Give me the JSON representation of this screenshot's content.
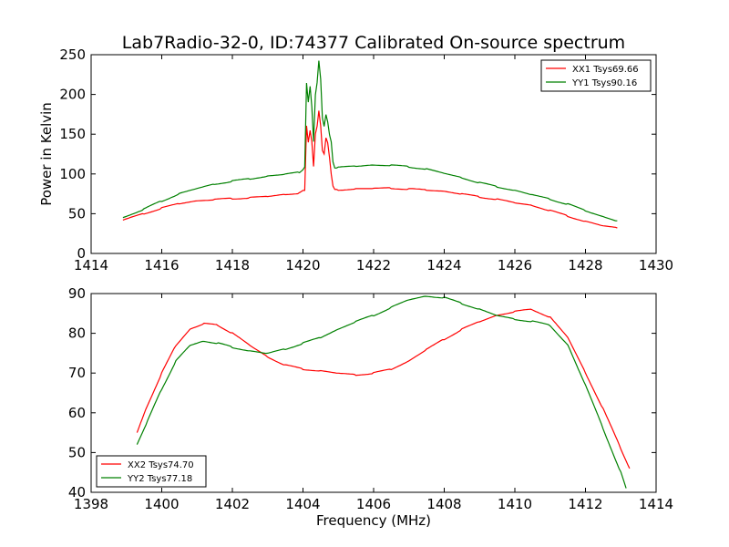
{
  "figure": {
    "title": "Lab7Radio-32-0, ID:74377 Calibrated On-source spectrum"
  },
  "chart_data": [
    {
      "type": "line",
      "title": "Lab7Radio-32-0, ID:74377 Calibrated On-source spectrum",
      "xlabel": "",
      "ylabel": "Power in Kelvin",
      "xlim": [
        1414,
        1430
      ],
      "ylim": [
        0,
        250
      ],
      "xticks": [
        1414,
        1416,
        1418,
        1420,
        1422,
        1424,
        1426,
        1428,
        1430
      ],
      "yticks": [
        0,
        50,
        100,
        150,
        200,
        250
      ],
      "legend_position": "top-right",
      "grid": false,
      "series": [
        {
          "name": "XX1 Tsys69.66",
          "color": "#ff0000",
          "x": [
            1414.9,
            1415.5,
            1416.0,
            1416.5,
            1417.0,
            1417.5,
            1418.0,
            1418.5,
            1419.0,
            1419.5,
            1419.9,
            1420.05,
            1420.1,
            1420.15,
            1420.2,
            1420.25,
            1420.3,
            1420.35,
            1420.4,
            1420.45,
            1420.5,
            1420.55,
            1420.6,
            1420.65,
            1420.7,
            1420.75,
            1420.8,
            1420.85,
            1420.9,
            1421.0,
            1421.5,
            1422.0,
            1422.5,
            1423.0,
            1423.5,
            1424.0,
            1424.5,
            1425.0,
            1425.5,
            1426.0,
            1426.5,
            1427.0,
            1427.5,
            1428.0,
            1428.5,
            1428.9
          ],
          "y": [
            42,
            50,
            57,
            63,
            66,
            68,
            69,
            70,
            72,
            74,
            76,
            80,
            160,
            140,
            155,
            140,
            110,
            150,
            160,
            180,
            160,
            130,
            125,
            145,
            140,
            120,
            100,
            85,
            80,
            80,
            81,
            82,
            82,
            81,
            80,
            78,
            75,
            71,
            68,
            64,
            60,
            54,
            47,
            40,
            35,
            32
          ]
        },
        {
          "name": "YY1 Tsys90.16",
          "color": "#008000",
          "x": [
            1414.9,
            1415.5,
            1416.0,
            1416.5,
            1417.0,
            1417.5,
            1418.0,
            1418.5,
            1419.0,
            1419.5,
            1419.9,
            1420.05,
            1420.1,
            1420.15,
            1420.2,
            1420.25,
            1420.3,
            1420.35,
            1420.4,
            1420.45,
            1420.5,
            1420.55,
            1420.6,
            1420.65,
            1420.7,
            1420.75,
            1420.8,
            1420.85,
            1420.9,
            1421.0,
            1421.5,
            1422.0,
            1422.5,
            1423.0,
            1423.5,
            1424.0,
            1424.5,
            1425.0,
            1425.5,
            1426.0,
            1426.5,
            1427.0,
            1427.5,
            1428.0,
            1428.5,
            1428.9
          ],
          "y": [
            45,
            56,
            66,
            75,
            82,
            87,
            91,
            94,
            97,
            100,
            102,
            108,
            215,
            190,
            210,
            185,
            140,
            200,
            215,
            242,
            220,
            170,
            160,
            175,
            165,
            150,
            140,
            115,
            108,
            108,
            110,
            111,
            111,
            109,
            106,
            101,
            95,
            89,
            84,
            79,
            74,
            68,
            62,
            54,
            46,
            41
          ]
        }
      ]
    },
    {
      "type": "line",
      "title": "",
      "xlabel": "Frequency (MHz)",
      "ylabel": "",
      "xlim": [
        1398,
        1414
      ],
      "ylim": [
        40,
        90
      ],
      "xticks": [
        1398,
        1400,
        1402,
        1404,
        1406,
        1408,
        1410,
        1412,
        1414
      ],
      "yticks": [
        40,
        50,
        60,
        70,
        80,
        90
      ],
      "legend_position": "bottom-left",
      "grid": false,
      "series": [
        {
          "name": "XX2 Tsys74.70",
          "color": "#ff0000",
          "x": [
            1399.3,
            1399.6,
            1400.0,
            1400.4,
            1400.8,
            1401.2,
            1401.6,
            1402.0,
            1402.5,
            1403.0,
            1403.5,
            1404.0,
            1404.5,
            1405.0,
            1405.5,
            1406.0,
            1406.5,
            1407.0,
            1407.5,
            1408.0,
            1408.5,
            1409.0,
            1409.5,
            1410.0,
            1410.5,
            1411.0,
            1411.5,
            1412.0,
            1412.5,
            1413.0,
            1413.25
          ],
          "y": [
            55,
            62,
            70,
            77,
            81,
            82.5,
            82,
            80,
            77,
            74,
            72,
            71,
            70.5,
            70,
            69.5,
            70,
            71,
            73,
            76,
            78.5,
            81,
            83,
            84.5,
            85.5,
            86,
            84,
            79,
            70,
            61,
            51,
            46
          ]
        },
        {
          "name": "YY2 Tsys77.18",
          "color": "#008000",
          "x": [
            1399.3,
            1399.6,
            1400.0,
            1400.4,
            1400.8,
            1401.2,
            1401.6,
            1402.0,
            1402.5,
            1403.0,
            1403.5,
            1404.0,
            1404.5,
            1405.0,
            1405.5,
            1406.0,
            1406.5,
            1407.0,
            1407.5,
            1408.0,
            1408.5,
            1409.0,
            1409.5,
            1410.0,
            1410.5,
            1411.0,
            1411.5,
            1412.0,
            1412.5,
            1413.0,
            1413.15
          ],
          "y": [
            52,
            58,
            66,
            73,
            77,
            78,
            77.5,
            76.5,
            75.5,
            75,
            76,
            77.5,
            79,
            81,
            83,
            84.5,
            86.5,
            88.5,
            89.3,
            89,
            87.5,
            86,
            84.5,
            83.5,
            83,
            82,
            77,
            67,
            56,
            45,
            41
          ]
        }
      ]
    }
  ]
}
